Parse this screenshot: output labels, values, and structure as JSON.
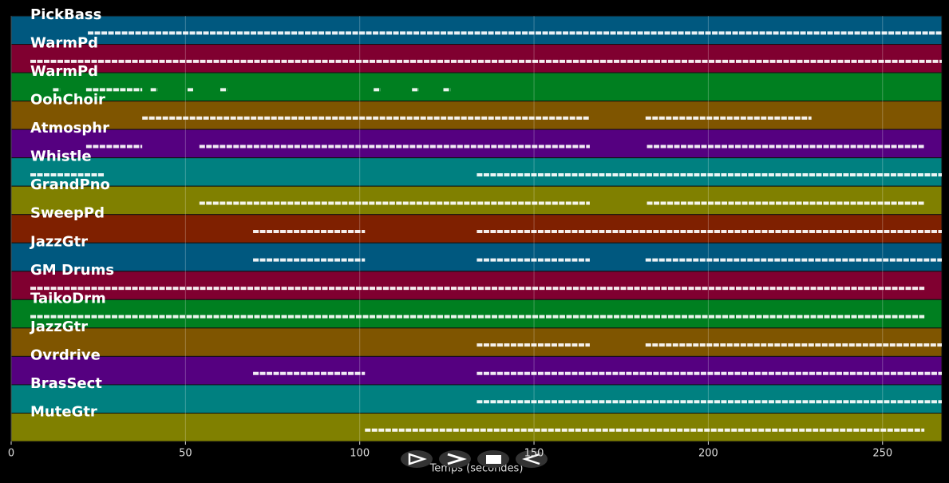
{
  "chart_data": {
    "type": "pianoroll",
    "xlabel": "Temps (secondes)",
    "xlim": [
      0,
      267
    ],
    "xticks": [
      0,
      50,
      100,
      150,
      200,
      250
    ],
    "grid": true,
    "note_color": "#ffffff",
    "tracks": [
      {
        "name": "PickBass",
        "color": "#00587f",
        "spans": [
          [
            22,
            267
          ]
        ]
      },
      {
        "name": "WarmPd",
        "color": "#800030",
        "spans": [
          [
            5.5,
            267
          ]
        ]
      },
      {
        "name": "WarmPd",
        "color": "#007f20",
        "spans": [
          [
            12,
            14
          ],
          [
            21.5,
            37.6
          ],
          [
            40,
            42
          ],
          [
            50.6,
            52.5
          ],
          [
            60,
            62
          ],
          [
            104,
            106
          ],
          [
            115,
            117
          ],
          [
            124,
            126
          ]
        ]
      },
      {
        "name": "OohChoir",
        "color": "#7f5500",
        "spans": [
          [
            37.6,
            166
          ],
          [
            182,
            229.6
          ]
        ]
      },
      {
        "name": "Atmosphr",
        "color": "#550080",
        "spans": [
          [
            21.5,
            37.6
          ],
          [
            54,
            166
          ],
          [
            182.4,
            262
          ]
        ]
      },
      {
        "name": "Whistle",
        "color": "#008080",
        "spans": [
          [
            5.5,
            26.6
          ],
          [
            133.6,
            267
          ]
        ]
      },
      {
        "name": "GrandPno",
        "color": "#808000",
        "spans": [
          [
            54,
            166
          ],
          [
            182.4,
            262
          ]
        ]
      },
      {
        "name": "SweepPd",
        "color": "#7f2000",
        "spans": [
          [
            69.4,
            101.5
          ],
          [
            133.6,
            267
          ]
        ]
      },
      {
        "name": "JazzGtr",
        "color": "#00587f",
        "spans": [
          [
            69.4,
            101.5
          ],
          [
            133.6,
            166
          ],
          [
            182,
            267
          ]
        ]
      },
      {
        "name": "GM Drums",
        "color": "#800030",
        "spans": [
          [
            5.5,
            262
          ]
        ]
      },
      {
        "name": "TaikoDrm",
        "color": "#007f20",
        "spans": [
          [
            5.5,
            262
          ]
        ]
      },
      {
        "name": "JazzGtr",
        "color": "#7f5500",
        "spans": [
          [
            133.6,
            166
          ],
          [
            182,
            267
          ]
        ]
      },
      {
        "name": "Ovrdrive",
        "color": "#550080",
        "spans": [
          [
            69.4,
            101.5
          ],
          [
            133.6,
            267
          ]
        ]
      },
      {
        "name": "BrasSect",
        "color": "#008080",
        "spans": [
          [
            133.6,
            267
          ]
        ]
      },
      {
        "name": "MuteGtr",
        "color": "#808000",
        "spans": [
          [
            101.5,
            262
          ]
        ]
      }
    ]
  }
}
